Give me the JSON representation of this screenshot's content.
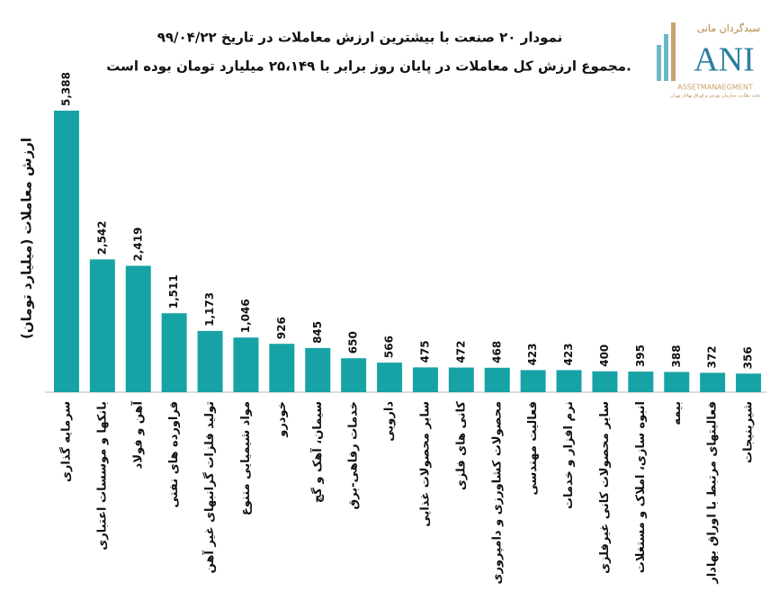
{
  "chart_data": {
    "type": "bar",
    "title": "نمودار ۲۰ صنعت با بیشترین ارزش معاملات در تاریخ ۹۹/۰۴/۲۲",
    "subtitle": "مجموع ارزش کل معاملات در پایان روز برابر با ۲۵،۱۴۹ میلیارد تومان بوده است.",
    "y_label": "ارزش معاملات (میلیارد تومان)",
    "color": "#17a3a6",
    "categories": [
      "سرمایه گذاری",
      "بانکها و موسسات اعتباری",
      "آهن و فولاد",
      "فراورده های نفتی",
      "تولید فلزات گرانبهای غیر آهن",
      "مواد شیمیایی متنوع",
      "خودرو",
      "سیمان، آهک و گچ",
      "خدمات رفاهی-برق",
      "دارویی",
      "سایر محصولات غذایی",
      "کانی های فلزی",
      "محصولات کشاورزی و دامپروری",
      "فعالیت مهندسی",
      "نرم افزار و خدمات",
      "سایر محصولات کانی غیرفلزی",
      "انبوه سازی، املاک و مستغلات",
      "بیمه",
      "فعالیتهای مرتبط با اوراق بهادار",
      "شیرینیجات"
    ],
    "values": [
      5388,
      2542,
      2419,
      1511,
      1173,
      1046,
      926,
      845,
      650,
      566,
      475,
      472,
      468,
      423,
      423,
      400,
      395,
      388,
      372,
      356
    ],
    "value_labels": [
      "5,388",
      "2,542",
      "2,419",
      "1,511",
      "1,173",
      "1,046",
      "926",
      "845",
      "650",
      "566",
      "475",
      "472",
      "468",
      "423",
      "423",
      "400",
      "395",
      "388",
      "372",
      "356"
    ]
  },
  "logo": {
    "name": "سبدگردان مانی",
    "mark": "ANI",
    "tagline": "ASSETMANAEGMENT",
    "note": "تحت نظارت سازمان بورس و اوراق بهادار تهران"
  }
}
